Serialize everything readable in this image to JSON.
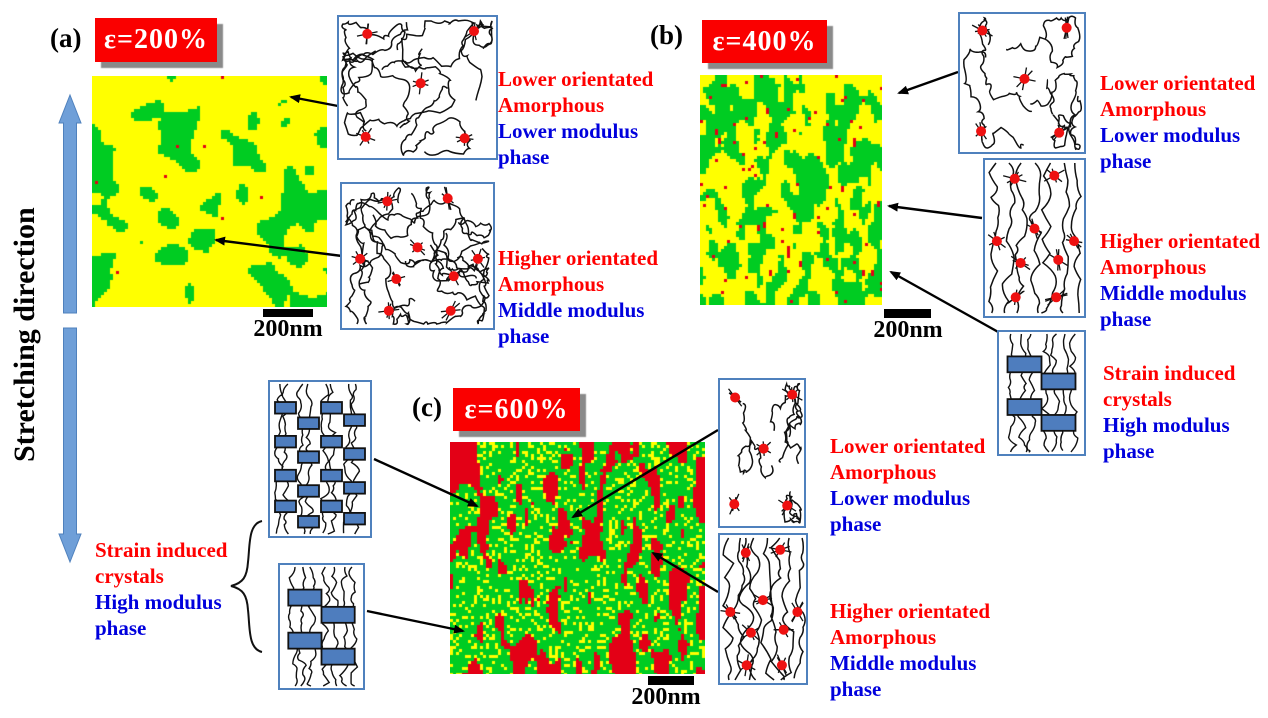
{
  "stretching_direction_label": "Stretching direction",
  "panels": [
    {
      "id": "a",
      "tag": "(a)",
      "strain_label": "ε=200%",
      "scale_bar_label": "200nm"
    },
    {
      "id": "b",
      "tag": "(b)",
      "strain_label": "ε=400%",
      "scale_bar_label": "200nm"
    },
    {
      "id": "c",
      "tag": "(c)",
      "strain_label": "ε=600%",
      "scale_bar_label": "200nm"
    }
  ],
  "legends": {
    "lower_amorphous": {
      "line1": "Lower orientated",
      "line2": "Amorphous",
      "line3": "Lower modulus",
      "line4": "phase"
    },
    "higher_amorphous": {
      "line1": "Higher orientated",
      "line2": "Amorphous",
      "line3": "Middle modulus",
      "line4": "phase"
    },
    "strain_crystals": {
      "line1": "Strain induced",
      "line2": "crystals",
      "line3": "High modulus",
      "line4": "phase"
    }
  },
  "colors": {
    "red_text": "#ff0000",
    "blue_text": "#0000dd",
    "strain_box_bg": "#fa0000",
    "strain_box_text": "#ffffff",
    "schematic_border": "#4f81bd",
    "crystal_fill": "#4e7dbe",
    "stretch_arrow_fill": "#6f9fd8",
    "afm_yellow": "#ffff00",
    "afm_green": "#00cc22",
    "afm_red": "#e30016",
    "crosslink_dot": "#ee1111"
  }
}
